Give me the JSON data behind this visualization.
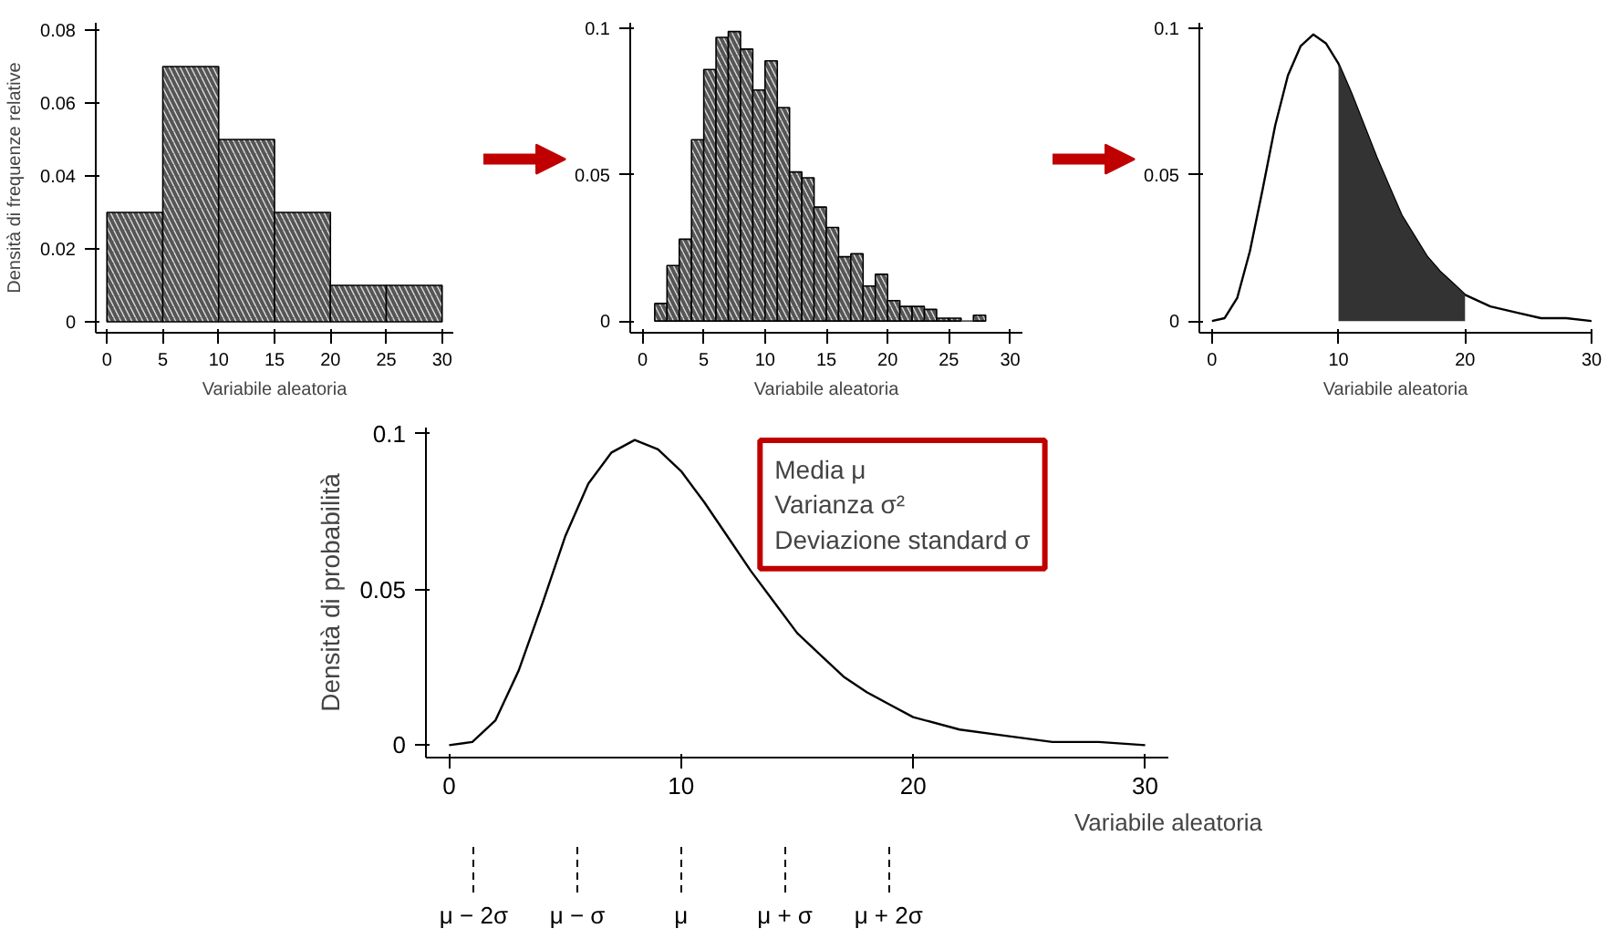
{
  "chart_data": [
    {
      "type": "histogram",
      "xlabel": "Variabile aleatoria",
      "ylabel": "Densità di frequenze relative",
      "bins": [
        0,
        5,
        10,
        15,
        20,
        25,
        30
      ],
      "values": [
        0.03,
        0.07,
        0.05,
        0.03,
        0.01,
        0.01
      ],
      "color": "#555555",
      "xlim": [
        -1,
        31
      ],
      "ylim": [
        -0.003,
        0.082
      ],
      "xticks": [
        0,
        5,
        10,
        15,
        20,
        25,
        30
      ],
      "yticks": [
        0,
        0.02,
        0.04,
        0.06,
        0.08
      ],
      "grid": false
    },
    {
      "type": "histogram",
      "xlabel": "Variabile aleatoria",
      "bins": [
        1,
        2,
        3,
        4,
        5,
        6,
        7,
        8,
        9,
        10,
        11,
        12,
        13,
        14,
        15,
        16,
        17,
        18,
        19,
        20,
        21,
        22,
        23,
        24,
        25,
        26,
        27,
        28
      ],
      "values": [
        0.006,
        0.019,
        0.028,
        0.062,
        0.086,
        0.097,
        0.099,
        0.093,
        0.079,
        0.089,
        0.073,
        0.051,
        0.049,
        0.039,
        0.032,
        0.022,
        0.023,
        0.012,
        0.016,
        0.007,
        0.005,
        0.005,
        0.004,
        0.001,
        0.001,
        0,
        0.002
      ],
      "color": "#555555",
      "xlim": [
        -1,
        31
      ],
      "ylim": [
        -0.004,
        0.102
      ],
      "xticks": [
        0,
        5,
        10,
        15,
        20,
        25,
        30
      ],
      "yticks": [
        0,
        0.05,
        0.1
      ],
      "grid": false
    },
    {
      "type": "line",
      "xlabel": "Variabile aleatoria",
      "series": [
        {
          "type": "line",
          "color": "#000000",
          "x": [
            0,
            1,
            2,
            3,
            4,
            5,
            6,
            7,
            8,
            9,
            10,
            11,
            12,
            13,
            14,
            15,
            16,
            17,
            18,
            19,
            20,
            22,
            24,
            26,
            28,
            30
          ],
          "values": [
            0,
            0.001,
            0.008,
            0.024,
            0.045,
            0.067,
            0.084,
            0.094,
            0.098,
            0.095,
            0.088,
            0.078,
            0.067,
            0.056,
            0.046,
            0.036,
            0.029,
            0.022,
            0.017,
            0.013,
            0.009,
            0.005,
            0.003,
            0.001,
            0.001,
            0
          ]
        },
        {
          "type": "area",
          "color": "#333333",
          "x": [
            10,
            11,
            12,
            13,
            14,
            15,
            16,
            17,
            18,
            19,
            20
          ],
          "values": [
            0.088,
            0.078,
            0.067,
            0.056,
            0.046,
            0.036,
            0.029,
            0.022,
            0.017,
            0.013,
            0.009
          ]
        }
      ],
      "xlim": [
        -1,
        30
      ],
      "ylim": [
        -0.004,
        0.102
      ],
      "xticks": [
        0,
        10,
        20,
        30
      ],
      "yticks": [
        0,
        0.05,
        0.1
      ],
      "grid": false
    },
    {
      "type": "line",
      "xlabel": "Variabile aleatoria",
      "ylabel": "Densità di probabilità",
      "series": [
        {
          "color": "#000000",
          "x": [
            0,
            1,
            2,
            3,
            4,
            5,
            6,
            7,
            8,
            9,
            10,
            11,
            12,
            13,
            14,
            15,
            16,
            17,
            18,
            19,
            20,
            22,
            24,
            26,
            28,
            30
          ],
          "values": [
            0,
            0.001,
            0.008,
            0.024,
            0.045,
            0.067,
            0.084,
            0.094,
            0.098,
            0.095,
            0.088,
            0.078,
            0.067,
            0.056,
            0.046,
            0.036,
            0.029,
            0.022,
            0.017,
            0.013,
            0.009,
            0.005,
            0.003,
            0.001,
            0.001,
            0
          ]
        }
      ],
      "annotations": [
        "Media μ",
        "Varianza σ²",
        "Deviazione standard σ"
      ],
      "ref_lines": [
        {
          "axis": "x",
          "value": 1.06,
          "label": "μ − 2σ",
          "line_style": "dashed"
        },
        {
          "axis": "x",
          "value": 5.53,
          "label": "μ − σ",
          "line_style": "dashed"
        },
        {
          "axis": "x",
          "value": 10,
          "label": "μ",
          "line_style": "dashed"
        },
        {
          "axis": "x",
          "value": 14.47,
          "label": "μ + σ",
          "line_style": "dashed"
        },
        {
          "axis": "x",
          "value": 18.94,
          "label": "μ + 2σ",
          "line_style": "dashed"
        }
      ],
      "xlim": [
        -1,
        31
      ],
      "ylim": [
        -0.004,
        0.102
      ],
      "xticks": [
        0,
        10,
        20,
        30
      ],
      "yticks": [
        0,
        0.05,
        0.1
      ],
      "grid": false
    }
  ]
}
